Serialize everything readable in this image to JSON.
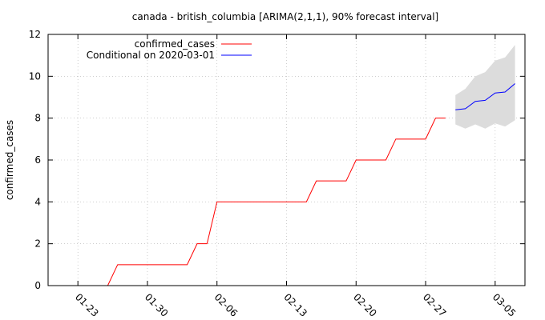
{
  "chart_data": {
    "type": "line",
    "title": "canada - british_columbia [ARIMA(2,1,1), 90% forecast interval]",
    "xlabel": "",
    "ylabel": "confirmed_cases",
    "xlim": [
      "2020-01-20",
      "2020-03-08"
    ],
    "ylim": [
      0,
      12
    ],
    "y_ticks": [
      0,
      2,
      4,
      6,
      8,
      10,
      12
    ],
    "x_ticks": [
      "01-23",
      "01-30",
      "02-06",
      "02-13",
      "02-20",
      "02-27",
      "03-05"
    ],
    "grid": true,
    "legend_position": "top-left",
    "series": [
      {
        "name": "confirmed_cases",
        "color": "#ff0000",
        "x": [
          "2020-01-26",
          "2020-01-27",
          "2020-01-28",
          "2020-01-29",
          "2020-01-30",
          "2020-01-31",
          "2020-02-01",
          "2020-02-02",
          "2020-02-03",
          "2020-02-04",
          "2020-02-05",
          "2020-02-06",
          "2020-02-07",
          "2020-02-08",
          "2020-02-09",
          "2020-02-10",
          "2020-02-11",
          "2020-02-12",
          "2020-02-13",
          "2020-02-14",
          "2020-02-15",
          "2020-02-16",
          "2020-02-17",
          "2020-02-18",
          "2020-02-19",
          "2020-02-20",
          "2020-02-21",
          "2020-02-22",
          "2020-02-23",
          "2020-02-24",
          "2020-02-25",
          "2020-02-26",
          "2020-02-27",
          "2020-02-28",
          "2020-02-29"
        ],
        "y": [
          0,
          1,
          1,
          1,
          1,
          1,
          1,
          1,
          1,
          2,
          2,
          4,
          4,
          4,
          4,
          4,
          4,
          4,
          4,
          4,
          4,
          5,
          5,
          5,
          5,
          6,
          6,
          6,
          6,
          7,
          7,
          7,
          7,
          8,
          8
        ]
      },
      {
        "name": "Conditional on 2020-03-01",
        "color": "#0000ff",
        "x": [
          "2020-03-01",
          "2020-03-02",
          "2020-03-03",
          "2020-03-04",
          "2020-03-05",
          "2020-03-06",
          "2020-03-07"
        ],
        "y": [
          8.4,
          8.45,
          8.8,
          8.85,
          9.2,
          9.25,
          9.65
        ]
      }
    ],
    "interval": {
      "label": "90% forecast interval",
      "color": "#dcdcdc",
      "x": [
        "2020-03-01",
        "2020-03-02",
        "2020-03-03",
        "2020-03-04",
        "2020-03-05",
        "2020-03-06",
        "2020-03-07"
      ],
      "lower": [
        7.7,
        7.5,
        7.7,
        7.5,
        7.75,
        7.6,
        7.9
      ],
      "upper": [
        9.1,
        9.4,
        10.0,
        10.2,
        10.75,
        10.9,
        11.5
      ]
    }
  }
}
